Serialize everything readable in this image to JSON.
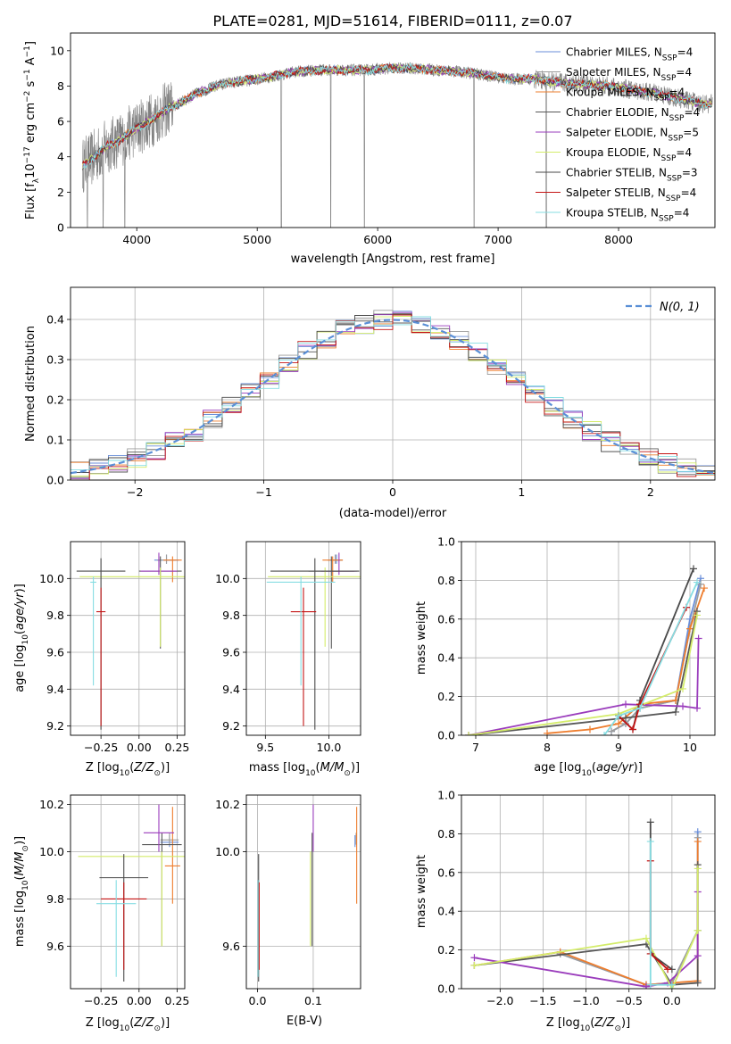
{
  "title": "PLATE=0281, MJD=51614, FIBERID=0111, z=0.07",
  "colors": {
    "Chabrier MILES": "#6a8ed8",
    "Salpeter MILES": "#9c9c9c",
    "Kroupa MILES": "#ee7d2d",
    "Chabrier ELODIE": "#575757",
    "Salpeter ELODIE": "#9a3cbc",
    "Kroupa ELODIE": "#d4ec6a",
    "Chabrier STELIB": "#4a4a4a",
    "Salpeter STELIB": "#c41414",
    "Kroupa STELIB": "#86dde2",
    "normal": "#5a8fd6",
    "data": "#7f7f7f"
  },
  "legend_models": [
    {
      "model": "Chabrier MILES",
      "nssp": "4"
    },
    {
      "model": "Salpeter MILES",
      "nssp": "4"
    },
    {
      "model": "Kroupa MILES",
      "nssp": "4"
    },
    {
      "model": "Chabrier ELODIE",
      "nssp": "4"
    },
    {
      "model": "Salpeter ELODIE",
      "nssp": "5"
    },
    {
      "model": "Kroupa ELODIE",
      "nssp": "4"
    },
    {
      "model": "Chabrier STELIB",
      "nssp": "3"
    },
    {
      "model": "Salpeter STELIB",
      "nssp": "4"
    },
    {
      "model": "Kroupa STELIB",
      "nssp": "4"
    }
  ],
  "chart_data": [
    {
      "id": "spectrum",
      "type": "line",
      "xlabel": "wavelength [Angstrom, rest frame]",
      "ylabel": "Flux [f_λ 10^−17 erg cm^−2 s^−1 A^−1]",
      "xlim": [
        3450,
        8800
      ],
      "ylim": [
        0,
        11
      ],
      "xticks": [
        4000,
        5000,
        6000,
        7000,
        8000
      ],
      "yticks": [
        0,
        2,
        4,
        6,
        8,
        10
      ],
      "continuum": {
        "x": [
          3550,
          3650,
          3750,
          3850,
          3950,
          4050,
          4150,
          4250,
          4350,
          4500,
          4700,
          4900,
          5100,
          5300,
          5500,
          5700,
          5900,
          6100,
          6300,
          6500,
          6700,
          6900,
          7100,
          7300,
          7500,
          7700,
          7900,
          8100,
          8300,
          8500,
          8700
        ],
        "y": [
          3.5,
          4.0,
          4.6,
          4.9,
          5.4,
          5.8,
          6.2,
          6.7,
          7.0,
          7.6,
          8.1,
          8.3,
          8.5,
          8.8,
          8.9,
          8.9,
          8.9,
          9.0,
          9.0,
          8.9,
          8.8,
          8.6,
          8.4,
          8.4,
          8.2,
          8.1,
          8.0,
          7.8,
          7.6,
          7.3,
          7.0
        ]
      },
      "absorption_features": [
        {
          "x": 3590,
          "y": 0
        },
        {
          "x": 3720,
          "y": 0
        },
        {
          "x": 3900,
          "y": 0
        },
        {
          "x": 5200,
          "y": 0
        },
        {
          "x": 5610,
          "y": 0
        },
        {
          "x": 5890,
          "y": 0
        },
        {
          "x": 6800,
          "y": 0
        },
        {
          "x": 7400,
          "y": 0
        }
      ]
    },
    {
      "id": "residuals",
      "type": "line",
      "xlabel": "(data-model)/error",
      "ylabel": "Normed distribution",
      "xlim": [
        -2.5,
        2.5
      ],
      "ylim": [
        0,
        0.48
      ],
      "xticks": [
        -2,
        -1,
        0,
        1,
        2
      ],
      "yticks": [
        0,
        0.1,
        0.2,
        0.3,
        0.4
      ],
      "legend": "N(0,1)",
      "legend_position": "upper right"
    },
    {
      "id": "age-vs-z",
      "type": "scatter",
      "xlabel": "Z [log10(Z/Z⊙)]",
      "ylabel": "age [log10(age/yr)]",
      "xlim": [
        -0.45,
        0.3
      ],
      "ylim": [
        9.15,
        10.2
      ],
      "xticks": [
        -0.25,
        0.0,
        0.25
      ],
      "yticks": [
        9.2,
        9.4,
        9.6,
        9.8,
        10.0
      ],
      "points": [
        {
          "model": "Chabrier MILES",
          "x": 0.18,
          "y": 10.1,
          "xerr": 0.08,
          "yerr": [
            0.02,
            0.03
          ]
        },
        {
          "model": "Salpeter MILES",
          "x": 0.18,
          "y": 10.1,
          "xerr": 0.06,
          "yerr": [
            0.02,
            0.03
          ]
        },
        {
          "model": "Kroupa MILES",
          "x": 0.22,
          "y": 10.1,
          "xerr": 0.06,
          "yerr": [
            0.12,
            0.02
          ]
        },
        {
          "model": "Chabrier ELODIE",
          "x": 0.14,
          "y": 10.04,
          "xerr": 0.14,
          "yerr": [
            0.42,
            0.08
          ]
        },
        {
          "model": "Salpeter ELODIE",
          "x": 0.13,
          "y": 10.04,
          "xerr": 0.12,
          "yerr": [
            0.02,
            0.1
          ]
        },
        {
          "model": "Kroupa ELODIE",
          "x": 0.14,
          "y": 10.01,
          "xerr": 0.53,
          "yerr": [
            0.38,
            0.05
          ]
        },
        {
          "model": "Chabrier STELIB",
          "x": -0.25,
          "y": 10.04,
          "xerr": 0.16,
          "yerr": [
            0.86,
            0.07
          ]
        },
        {
          "model": "Salpeter STELIB",
          "x": -0.25,
          "y": 9.82,
          "xerr": 0.03,
          "yerr": [
            0.62,
            0.13
          ]
        },
        {
          "model": "Kroupa STELIB",
          "x": -0.3,
          "y": 9.98,
          "xerr": 0.02,
          "yerr": [
            0.56,
            0.03
          ]
        }
      ]
    },
    {
      "id": "age-vs-mass",
      "type": "scatter",
      "xlabel": "mass [log10(M/M⊙)]",
      "xlim": [
        9.35,
        10.25
      ],
      "ylim": [
        9.15,
        10.2
      ],
      "xticks": [
        9.5,
        10.0
      ],
      "yticks": [
        9.2,
        9.4,
        9.6,
        9.8,
        10.0
      ],
      "points": [
        {
          "model": "Chabrier MILES",
          "x": 10.06,
          "y": 10.1,
          "xerr": 0.04,
          "yerr": [
            0.02,
            0.03
          ]
        },
        {
          "model": "Salpeter MILES",
          "x": 10.05,
          "y": 10.1,
          "xerr": 0.06,
          "yerr": [
            0.02,
            0.03
          ]
        },
        {
          "model": "Kroupa MILES",
          "x": 10.03,
          "y": 10.1,
          "xerr": 0.08,
          "yerr": [
            0.12,
            0.02
          ]
        },
        {
          "model": "Chabrier ELODIE",
          "x": 10.02,
          "y": 10.04,
          "xerr": 0.18,
          "yerr": [
            0.42,
            0.08
          ]
        },
        {
          "model": "Salpeter ELODIE",
          "x": 10.08,
          "y": 10.04,
          "xerr": 0.14,
          "yerr": [
            0.02,
            0.1
          ]
        },
        {
          "model": "Kroupa ELODIE",
          "x": 9.97,
          "y": 10.01,
          "xerr": 0.45,
          "yerr": [
            0.38,
            0.05
          ]
        },
        {
          "model": "Chabrier STELIB",
          "x": 9.89,
          "y": 10.04,
          "xerr": 0.35,
          "yerr": [
            0.86,
            0.07
          ]
        },
        {
          "model": "Salpeter STELIB",
          "x": 9.8,
          "y": 9.82,
          "xerr": 0.1,
          "yerr": [
            0.62,
            0.13
          ]
        },
        {
          "model": "Kroupa STELIB",
          "x": 9.78,
          "y": 9.98,
          "xerr": 0.27,
          "yerr": [
            0.56,
            0.03
          ]
        }
      ]
    },
    {
      "id": "mass-vs-z",
      "type": "scatter",
      "xlabel": "Z [log10(Z/Z⊙)]",
      "ylabel": "mass [log10(M/M⊙)]",
      "xlim": [
        -0.45,
        0.3
      ],
      "ylim": [
        9.42,
        10.24
      ],
      "xticks": [
        -0.25,
        0.0,
        0.25
      ],
      "yticks": [
        9.6,
        9.8,
        10.0,
        10.2
      ],
      "points": [
        {
          "model": "Chabrier MILES",
          "x": 0.2,
          "y": 10.04,
          "xerr": 0.06,
          "yerr": [
            0.02,
            0.03
          ]
        },
        {
          "model": "Salpeter MILES",
          "x": 0.2,
          "y": 10.05,
          "xerr": 0.06,
          "yerr": [
            0.02,
            0.03
          ]
        },
        {
          "model": "Kroupa MILES",
          "x": 0.22,
          "y": 9.94,
          "xerr": 0.05,
          "yerr": [
            0.16,
            0.25
          ]
        },
        {
          "model": "Chabrier ELODIE",
          "x": 0.15,
          "y": 10.03,
          "xerr": 0.13,
          "yerr": [
            0.43,
            0.05
          ]
        },
        {
          "model": "Salpeter ELODIE",
          "x": 0.13,
          "y": 10.08,
          "xerr": 0.1,
          "yerr": [
            0.08,
            0.12
          ]
        },
        {
          "model": "Kroupa ELODIE",
          "x": 0.15,
          "y": 9.98,
          "xerr": 0.55,
          "yerr": [
            0.38,
            0.02
          ]
        },
        {
          "model": "Chabrier STELIB",
          "x": -0.1,
          "y": 9.89,
          "xerr": 0.16,
          "yerr": [
            0.44,
            0.1
          ]
        },
        {
          "model": "Salpeter STELIB",
          "x": -0.1,
          "y": 9.8,
          "xerr": 0.15,
          "yerr": [
            0.3,
            0.07
          ]
        },
        {
          "model": "Kroupa STELIB",
          "x": -0.15,
          "y": 9.78,
          "xerr": 0.13,
          "yerr": [
            0.31,
            0.1
          ]
        }
      ]
    },
    {
      "id": "mass-vs-ebv",
      "type": "scatter",
      "xlabel": "E(B-V)",
      "xlim": [
        -0.02,
        0.185
      ],
      "ylim": [
        9.42,
        10.24
      ],
      "xticks": [
        0.0,
        0.1
      ],
      "yticks": [
        9.6,
        10.0,
        10.2
      ],
      "points": [
        {
          "model": "Chabrier MILES",
          "x": 0.175,
          "y": 10.04,
          "xerr": 0,
          "yerr": [
            0.02,
            0.03
          ]
        },
        {
          "model": "Salpeter MILES",
          "x": 0.177,
          "y": 10.05,
          "xerr": 0,
          "yerr": [
            0.02,
            0.03
          ]
        },
        {
          "model": "Kroupa MILES",
          "x": 0.178,
          "y": 9.94,
          "xerr": 0,
          "yerr": [
            0.16,
            0.25
          ]
        },
        {
          "model": "Chabrier ELODIE",
          "x": 0.098,
          "y": 10.03,
          "xerr": 0,
          "yerr": [
            0.43,
            0.05
          ]
        },
        {
          "model": "Salpeter ELODIE",
          "x": 0.1,
          "y": 10.08,
          "xerr": 0,
          "yerr": [
            0.08,
            0.12
          ]
        },
        {
          "model": "Kroupa ELODIE",
          "x": 0.095,
          "y": 9.98,
          "xerr": 0,
          "yerr": [
            0.38,
            0.02
          ]
        },
        {
          "model": "Chabrier STELIB",
          "x": 0.002,
          "y": 9.89,
          "xerr": 0,
          "yerr": [
            0.44,
            0.1
          ]
        },
        {
          "model": "Salpeter STELIB",
          "x": 0.003,
          "y": 9.8,
          "xerr": 0,
          "yerr": [
            0.3,
            0.07
          ]
        },
        {
          "model": "Kroupa STELIB",
          "x": 0.001,
          "y": 9.78,
          "xerr": 0,
          "yerr": [
            0.31,
            0.1
          ]
        }
      ]
    },
    {
      "id": "cumulative-mass-weight-vs-age",
      "type": "line",
      "xlabel": "age [log10(age/yr)]",
      "ylabel": "mass weight",
      "xlim": [
        6.8,
        10.35
      ],
      "ylim": [
        0,
        1.0
      ],
      "xticks": [
        7,
        8,
        9,
        10
      ],
      "yticks": [
        0.0,
        0.2,
        0.4,
        0.6,
        0.8,
        1.0
      ],
      "series": [
        {
          "name": "Chabrier MILES",
          "x": [
            8.9,
            9.1,
            9.3,
            9.8,
            10.0,
            10.15
          ],
          "y": [
            0.02,
            0.06,
            0.14,
            0.18,
            0.6,
            0.81
          ]
        },
        {
          "name": "Salpeter MILES",
          "x": [
            8.9,
            9.1,
            9.3,
            9.8,
            10.0,
            10.15
          ],
          "y": [
            0.02,
            0.06,
            0.14,
            0.18,
            0.55,
            0.78
          ]
        },
        {
          "name": "Kroupa MILES",
          "x": [
            8.0,
            8.6,
            9.0,
            9.3,
            9.8,
            10.0,
            10.2
          ],
          "y": [
            0.01,
            0.03,
            0.06,
            0.16,
            0.18,
            0.55,
            0.76
          ]
        },
        {
          "name": "Chabrier ELODIE",
          "x": [
            6.9,
            9.1,
            9.8,
            10.1
          ],
          "y": [
            0.0,
            0.09,
            0.12,
            0.64
          ]
        },
        {
          "name": "Salpeter ELODIE",
          "x": [
            6.9,
            9.1,
            9.9,
            10.1,
            10.12
          ],
          "y": [
            0.0,
            0.16,
            0.15,
            0.14,
            0.5
          ]
        },
        {
          "name": "Kroupa ELODIE",
          "x": [
            6.9,
            9.0,
            9.9,
            10.1
          ],
          "y": [
            0.0,
            0.11,
            0.24,
            0.62
          ]
        },
        {
          "name": "Chabrier STELIB",
          "x": [
            9.0,
            9.2,
            9.3,
            10.05
          ],
          "y": [
            0.1,
            0.03,
            0.18,
            0.86
          ]
        },
        {
          "name": "Salpeter STELIB",
          "x": [
            9.0,
            9.2,
            9.3,
            9.95
          ],
          "y": [
            0.1,
            0.03,
            0.16,
            0.66
          ]
        },
        {
          "name": "Kroupa STELIB",
          "x": [
            8.8,
            9.0,
            9.3,
            10.1
          ],
          "y": [
            0.0,
            0.1,
            0.14,
            0.79
          ]
        }
      ]
    },
    {
      "id": "cumulative-mass-weight-vs-z",
      "type": "line",
      "xlabel": "Z [log10(Z/Z⊙)]",
      "ylabel": "mass weight",
      "xlim": [
        -2.45,
        0.5
      ],
      "ylim": [
        0,
        1.0
      ],
      "xticks": [
        -2.0,
        -1.5,
        -1.0,
        -0.5,
        0.0
      ],
      "yticks": [
        0.0,
        0.2,
        0.4,
        0.6,
        0.8,
        1.0
      ],
      "series": [
        {
          "name": "Chabrier MILES",
          "x": [
            -1.3,
            -0.3,
            0.0,
            0.3,
            0.3
          ],
          "y": [
            0.18,
            0.02,
            0.03,
            0.3,
            0.81
          ]
        },
        {
          "name": "Salpeter MILES",
          "x": [
            -1.3,
            -0.3,
            0.0,
            0.3,
            0.3
          ],
          "y": [
            0.18,
            0.02,
            0.03,
            0.3,
            0.78
          ]
        },
        {
          "name": "Kroupa MILES",
          "x": [
            -2.3,
            -1.3,
            -0.3,
            0.0,
            0.3,
            0.3
          ],
          "y": [
            0.12,
            0.19,
            0.02,
            0.03,
            0.04,
            0.76
          ]
        },
        {
          "name": "Chabrier ELODIE",
          "x": [
            -2.3,
            -0.3,
            0.0,
            0.3,
            0.3
          ],
          "y": [
            0.12,
            0.23,
            0.02,
            0.03,
            0.64
          ]
        },
        {
          "name": "Salpeter ELODIE",
          "x": [
            -2.3,
            -0.3,
            -0.05,
            0.3,
            0.3
          ],
          "y": [
            0.16,
            0.01,
            0.03,
            0.17,
            0.5
          ]
        },
        {
          "name": "Kroupa ELODIE",
          "x": [
            -2.3,
            -0.3,
            0.0,
            0.3,
            0.3
          ],
          "y": [
            0.12,
            0.26,
            0.0,
            0.3,
            0.62
          ]
        },
        {
          "name": "Chabrier STELIB",
          "x": [
            -0.25,
            -0.25,
            0.0
          ],
          "y": [
            0.86,
            0.18,
            0.1
          ]
        },
        {
          "name": "Salpeter STELIB",
          "x": [
            -0.25,
            -0.25,
            -0.05
          ],
          "y": [
            0.66,
            0.18,
            0.1
          ]
        },
        {
          "name": "Kroupa STELIB",
          "x": [
            -0.25,
            -0.25,
            0.0
          ],
          "y": [
            0.76,
            0.02,
            0.02
          ]
        }
      ]
    }
  ]
}
